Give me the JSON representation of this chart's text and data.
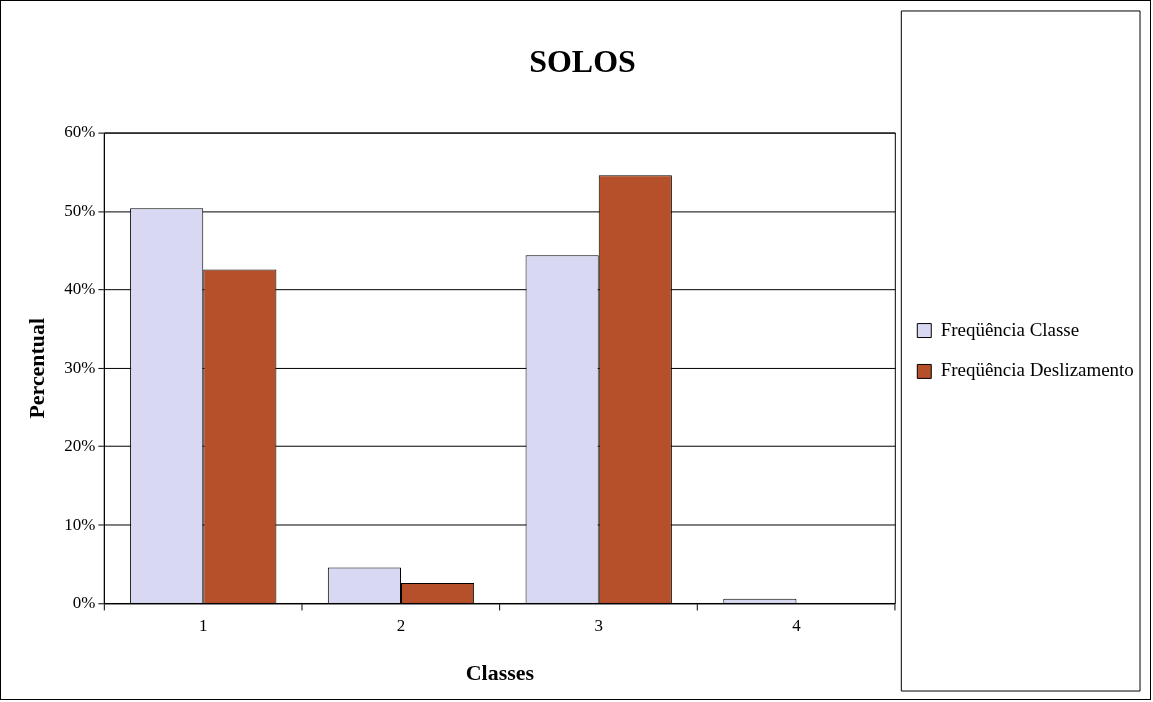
{
  "chart_data": {
    "type": "bar",
    "title": "SOLOS",
    "xlabel": "Classes",
    "ylabel": "Percentual",
    "categories": [
      "1",
      "2",
      "3",
      "4"
    ],
    "series": [
      {
        "name": "Freqüência Classe",
        "color": "#d8d8f2",
        "values": [
          50.4,
          4.6,
          44.4,
          0.6
        ]
      },
      {
        "name": "Freqüência Deslizamento",
        "color": "#b5502a",
        "values": [
          42.6,
          2.6,
          54.6,
          0
        ]
      }
    ],
    "ylim": [
      0,
      60
    ],
    "yticks": [
      {
        "value": 0,
        "label": "0%"
      },
      {
        "value": 10,
        "label": "10%"
      },
      {
        "value": 20,
        "label": "20%"
      },
      {
        "value": 30,
        "label": "30%"
      },
      {
        "value": 40,
        "label": "40%"
      },
      {
        "value": 50,
        "label": "50%"
      },
      {
        "value": 60,
        "label": "60%"
      }
    ],
    "grid": "y",
    "legend": "right"
  }
}
